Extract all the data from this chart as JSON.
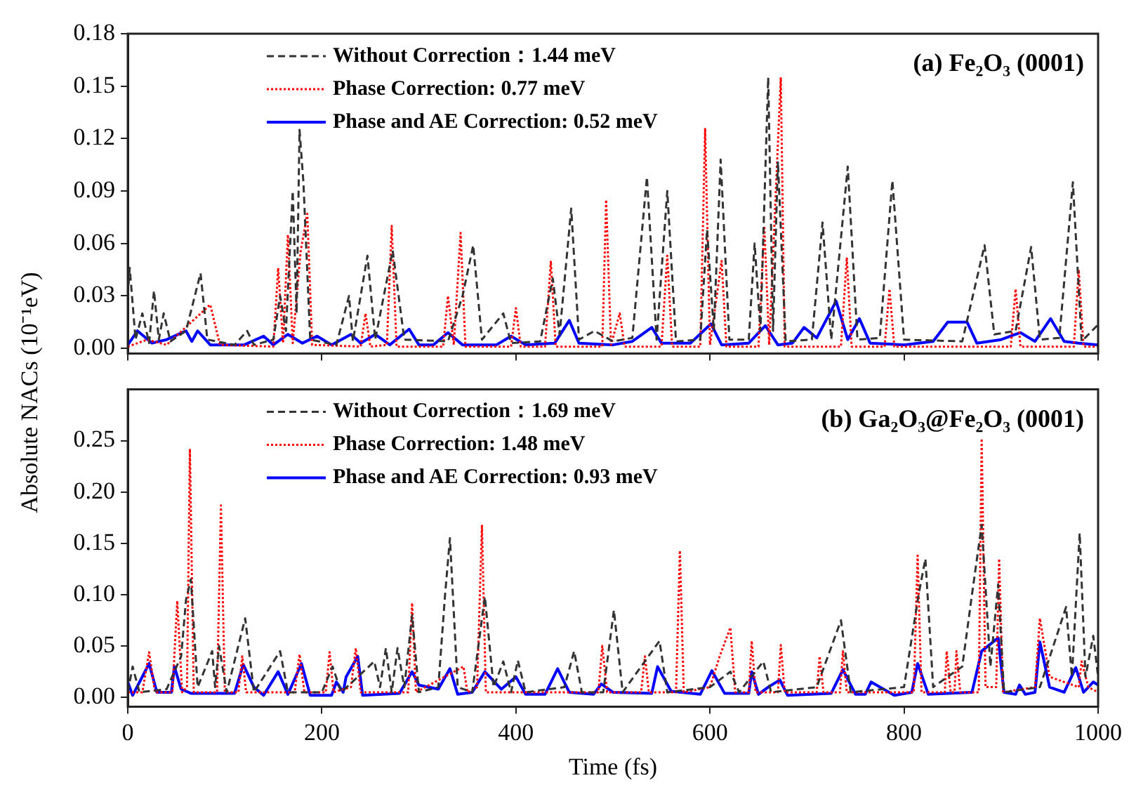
{
  "chart_data": [
    {
      "type": "line",
      "title": "(a) Fe₂O₃ (0001)",
      "ylabel": "Absolute NACs (10⁻¹eV)",
      "xlim": [
        0,
        1000
      ],
      "xticks": [
        0,
        200,
        400,
        600,
        800,
        1000
      ],
      "ylim": [
        -0.003,
        0.18
      ],
      "yticks": [
        {
          "value": 0,
          "label": "0.00"
        },
        0.03,
        0.06,
        0.09,
        0.12,
        0.15,
        0.18
      ],
      "tick_labels": "y",
      "grid": false,
      "legend": "top left",
      "series": [
        {
          "name": "Without Correction：1.44 meV",
          "color": "#333333",
          "line_style": "dashed",
          "x": [
            0,
            2,
            8,
            15,
            22,
            27,
            32,
            37,
            44,
            60,
            75,
            82,
            110,
            123,
            130,
            150,
            157,
            163,
            170,
            174,
            177,
            181,
            188,
            215,
            228,
            232,
            247,
            255,
            273,
            285,
            330,
            345,
            356,
            365,
            387,
            395,
            425,
            438,
            445,
            457,
            465,
            481,
            500,
            520,
            535,
            545,
            556,
            565,
            590,
            597,
            604,
            611,
            620,
            640,
            646,
            652,
            660,
            665,
            670,
            678,
            705,
            716,
            725,
            742,
            752,
            775,
            788,
            800,
            860,
            883,
            893,
            915,
            931,
            940,
            960,
            974,
            983,
            999
          ],
          "values": [
            0.03,
            0.046,
            0.005,
            0.02,
            0.003,
            0.033,
            0.005,
            0.02,
            0.004,
            0.01,
            0.043,
            0.005,
            0.002,
            0.01,
            0.002,
            0.005,
            0.03,
            0.01,
            0.09,
            0.02,
            0.125,
            0.095,
            0.005,
            0.002,
            0.03,
            0.004,
            0.053,
            0.005,
            0.056,
            0.005,
            0.004,
            0.03,
            0.059,
            0.005,
            0.02,
            0.003,
            0.004,
            0.04,
            0.008,
            0.08,
            0.005,
            0.01,
            0.004,
            0.006,
            0.098,
            0.005,
            0.09,
            0.004,
            0.005,
            0.068,
            0.01,
            0.108,
            0.005,
            0.005,
            0.06,
            0.01,
            0.155,
            0.01,
            0.107,
            0.004,
            0.005,
            0.072,
            0.005,
            0.104,
            0.005,
            0.006,
            0.096,
            0.005,
            0.004,
            0.059,
            0.008,
            0.01,
            0.058,
            0.005,
            0.006,
            0.095,
            0.004,
            0.013
          ]
        },
        {
          "name": "Phase Correction: 0.77 meV",
          "color": "#ff0000",
          "line_style": "dotted",
          "x": [
            0,
            20,
            40,
            85,
            95,
            150,
            155,
            160,
            165,
            170,
            178,
            185,
            190,
            240,
            245,
            250,
            267,
            272,
            277,
            325,
            330,
            336,
            343,
            348,
            395,
            400,
            405,
            430,
            436,
            441,
            489,
            493,
            498,
            507,
            512,
            550,
            556,
            561,
            590,
            595,
            600,
            612,
            617,
            650,
            656,
            661,
            673,
            677,
            735,
            741,
            746,
            780,
            785,
            790,
            910,
            915,
            920,
            975,
            980,
            985,
            1000
          ],
          "values": [
            0.001,
            0.005,
            0.002,
            0.025,
            0.002,
            0.001,
            0.046,
            0.003,
            0.065,
            0.003,
            0.055,
            0.077,
            0.002,
            0.001,
            0.02,
            0.001,
            0.002,
            0.07,
            0.001,
            0.001,
            0.03,
            0.002,
            0.066,
            0.001,
            0.001,
            0.023,
            0.001,
            0.001,
            0.05,
            0.001,
            0.001,
            0.085,
            0.002,
            0.02,
            0.001,
            0.001,
            0.053,
            0.001,
            0.001,
            0.126,
            0.002,
            0.05,
            0.001,
            0.001,
            0.07,
            0.002,
            0.155,
            0.001,
            0.001,
            0.052,
            0.001,
            0.001,
            0.034,
            0.001,
            0.001,
            0.034,
            0.001,
            0.001,
            0.045,
            0.001,
            0.001
          ]
        },
        {
          "name": "Phase and AE Correction: 0.52 meV",
          "color": "#0000ff",
          "line_style": "solid",
          "x": [
            0,
            10,
            25,
            40,
            60,
            66,
            72,
            85,
            120,
            140,
            150,
            165,
            180,
            195,
            210,
            230,
            240,
            255,
            270,
            290,
            300,
            315,
            330,
            345,
            380,
            395,
            410,
            440,
            455,
            465,
            500,
            520,
            540,
            550,
            580,
            601,
            612,
            640,
            657,
            670,
            685,
            697,
            710,
            730,
            742,
            754,
            765,
            800,
            830,
            845,
            865,
            875,
            900,
            920,
            935,
            951,
            965,
            980,
            1000
          ],
          "values": [
            0.002,
            0.01,
            0.003,
            0.005,
            0.01,
            0.004,
            0.01,
            0.002,
            0.002,
            0.007,
            0.002,
            0.008,
            0.003,
            0.007,
            0.002,
            0.008,
            0.003,
            0.008,
            0.002,
            0.011,
            0.002,
            0.002,
            0.009,
            0.002,
            0.002,
            0.007,
            0.002,
            0.003,
            0.016,
            0.003,
            0.002,
            0.004,
            0.012,
            0.003,
            0.003,
            0.014,
            0.002,
            0.003,
            0.013,
            0.002,
            0.003,
            0.012,
            0.006,
            0.027,
            0.005,
            0.017,
            0.003,
            0.002,
            0.004,
            0.015,
            0.015,
            0.003,
            0.005,
            0.009,
            0.004,
            0.017,
            0.004,
            0.003,
            0.002
          ]
        }
      ]
    },
    {
      "type": "line",
      "title": "(b) Ga₂O₃@Fe₂O₃ (0001)",
      "xlabel": "Time (fs)",
      "xlim": [
        0,
        1000
      ],
      "xticks": [
        0,
        200,
        400,
        600,
        800,
        1000
      ],
      "ylim": [
        -0.009,
        0.3
      ],
      "yticks": [
        {
          "value": 0,
          "label": "0.00"
        },
        0.05,
        {
          "value": 0.1,
          "label": "0.10"
        },
        0.15,
        {
          "value": 0.2,
          "label": "0.20"
        },
        0.25
      ],
      "grid": false,
      "legend": "top left",
      "series": [
        {
          "name": "Without Correction：1.69 meV",
          "color": "#333333",
          "line_style": "dashed",
          "x": [
            0,
            5,
            12,
            40,
            55,
            60,
            65,
            72,
            87,
            90,
            94,
            102,
            121,
            130,
            157,
            165,
            200,
            211,
            220,
            254,
            260,
            266,
            272,
            278,
            285,
            293,
            300,
            320,
            327,
            332,
            340,
            355,
            368,
            377,
            387,
            395,
            402,
            410,
            450,
            460,
            468,
            490,
            501,
            510,
            548,
            556,
            600,
            621,
            630,
            655,
            663,
            710,
            735,
            745,
            800,
            815,
            822,
            830,
            860,
            870,
            880,
            889,
            897,
            903,
            940,
            967,
            973,
            981,
            987,
            995,
            1000
          ],
          "values": [
            0.005,
            0.03,
            0.005,
            0.008,
            0.04,
            0.095,
            0.115,
            0.01,
            0.045,
            0.01,
            0.05,
            0.005,
            0.077,
            0.005,
            0.045,
            0.005,
            0.005,
            0.03,
            0.005,
            0.035,
            0.01,
            0.048,
            0.005,
            0.048,
            0.01,
            0.08,
            0.005,
            0.01,
            0.1,
            0.155,
            0.01,
            0.005,
            0.098,
            0.01,
            0.035,
            0.005,
            0.036,
            0.005,
            0.01,
            0.045,
            0.005,
            0.005,
            0.085,
            0.005,
            0.055,
            0.005,
            0.01,
            0.025,
            0.005,
            0.035,
            0.005,
            0.01,
            0.075,
            0.005,
            0.01,
            0.1,
            0.135,
            0.01,
            0.03,
            0.1,
            0.168,
            0.03,
            0.11,
            0.005,
            0.01,
            0.088,
            0.02,
            0.16,
            0.02,
            0.06,
            0.02
          ]
        },
        {
          "name": "Phase Correction: 1.48 meV",
          "color": "#ff0000",
          "line_style": "dotted",
          "x": [
            0,
            15,
            22,
            28,
            46,
            51,
            56,
            61,
            64,
            68,
            92,
            96,
            100,
            114,
            118,
            122,
            172,
            177,
            182,
            204,
            208,
            212,
            230,
            235,
            240,
            289,
            293,
            297,
            346,
            350,
            360,
            365,
            369,
            485,
            489,
            494,
            529,
            533,
            537,
            565,
            569,
            573,
            600,
            610,
            621,
            626,
            640,
            643,
            647,
            670,
            673,
            677,
            710,
            713,
            717,
            734,
            737,
            741,
            810,
            814,
            818,
            842,
            844,
            848,
            852,
            854,
            858,
            877,
            880,
            884,
            895,
            898,
            902,
            935,
            940,
            950,
            980,
            983,
            990,
            1000
          ],
          "values": [
            0.005,
            0.005,
            0.044,
            0.005,
            0.005,
            0.094,
            0.005,
            0.01,
            0.242,
            0.005,
            0.005,
            0.187,
            0.005,
            0.005,
            0.04,
            0.005,
            0.005,
            0.042,
            0.005,
            0.005,
            0.044,
            0.005,
            0.01,
            0.048,
            0.005,
            0.005,
            0.092,
            0.005,
            0.03,
            0.005,
            0.01,
            0.168,
            0.005,
            0.005,
            0.05,
            0.005,
            0.005,
            0.04,
            0.005,
            0.005,
            0.143,
            0.005,
            0.01,
            0.04,
            0.068,
            0.005,
            0.005,
            0.055,
            0.005,
            0.005,
            0.051,
            0.005,
            0.005,
            0.04,
            0.005,
            0.005,
            0.045,
            0.005,
            0.005,
            0.138,
            0.005,
            0.005,
            0.045,
            0.005,
            0.005,
            0.045,
            0.005,
            0.005,
            0.252,
            0.01,
            0.01,
            0.135,
            0.005,
            0.01,
            0.077,
            0.02,
            0.01,
            0.035,
            0.01,
            0.005
          ]
        },
        {
          "name": "Phase and AE Correction: 0.93 meV",
          "color": "#0000ff",
          "line_style": "solid",
          "x": [
            0,
            5,
            22,
            30,
            45,
            48,
            55,
            65,
            110,
            119,
            130,
            140,
            155,
            165,
            179,
            188,
            210,
            215,
            222,
            225,
            237,
            242,
            280,
            293,
            300,
            320,
            332,
            340,
            355,
            368,
            385,
            400,
            410,
            430,
            443,
            455,
            480,
            488,
            500,
            540,
            546,
            560,
            590,
            602,
            615,
            640,
            643,
            650,
            660,
            672,
            680,
            725,
            737,
            750,
            760,
            766,
            790,
            808,
            814,
            825,
            870,
            880,
            897,
            903,
            915,
            919,
            925,
            935,
            940,
            950,
            965,
            977,
            985,
            995,
            1000
          ],
          "values": [
            0.015,
            0.002,
            0.033,
            0.005,
            0.005,
            0.03,
            0.008,
            0.004,
            0.004,
            0.032,
            0.01,
            0.002,
            0.025,
            0.003,
            0.033,
            0.002,
            0.002,
            0.015,
            0.005,
            0.02,
            0.04,
            0.002,
            0.004,
            0.025,
            0.012,
            0.008,
            0.028,
            0.003,
            0.005,
            0.025,
            0.008,
            0.02,
            0.003,
            0.003,
            0.028,
            0.005,
            0.003,
            0.013,
            0.005,
            0.004,
            0.03,
            0.006,
            0.003,
            0.026,
            0.004,
            0.004,
            0.025,
            0.003,
            0.01,
            0.017,
            0.002,
            0.004,
            0.027,
            0.003,
            0.003,
            0.015,
            0.002,
            0.005,
            0.033,
            0.003,
            0.005,
            0.045,
            0.058,
            0.005,
            0.003,
            0.012,
            0.003,
            0.005,
            0.054,
            0.01,
            0.005,
            0.029,
            0.005,
            0.015,
            0.012
          ]
        }
      ]
    }
  ]
}
